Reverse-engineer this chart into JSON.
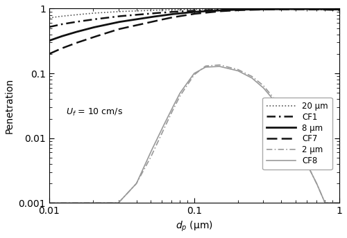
{
  "xlabel": "$d_p$ (μm)",
  "ylabel": "Penetration",
  "annotation_text": "$U_f$",
  "annotation_rest": " = 10 cm/s",
  "xlim": [
    0.01,
    1.0
  ],
  "ylim": [
    0.001,
    1.0
  ],
  "background_color": "#ffffff",
  "legend_entries": [
    "20 μm",
    "CF1",
    "8 μm",
    "CF7",
    "2 μm",
    "CF8"
  ],
  "curves": {
    "P20_x": [
      0.01,
      0.012,
      0.015,
      0.02,
      0.03,
      0.05,
      0.07,
      0.1,
      0.15,
      0.2,
      0.3,
      0.5,
      0.7,
      1.0
    ],
    "P20_y": [
      0.72,
      0.76,
      0.8,
      0.85,
      0.9,
      0.94,
      0.96,
      0.975,
      0.985,
      0.99,
      0.995,
      0.998,
      0.999,
      1.0
    ],
    "CF1_x": [
      0.01,
      0.012,
      0.015,
      0.02,
      0.03,
      0.05,
      0.07,
      0.1,
      0.15,
      0.2,
      0.3,
      0.5,
      0.7,
      1.0
    ],
    "CF1_y": [
      0.52,
      0.57,
      0.62,
      0.68,
      0.76,
      0.84,
      0.89,
      0.93,
      0.96,
      0.975,
      0.985,
      0.99,
      0.985,
      0.97
    ],
    "P8_x": [
      0.01,
      0.012,
      0.015,
      0.02,
      0.03,
      0.05,
      0.07,
      0.1,
      0.15,
      0.2,
      0.3,
      0.5,
      0.7,
      1.0
    ],
    "P8_y": [
      0.32,
      0.37,
      0.43,
      0.51,
      0.62,
      0.74,
      0.82,
      0.89,
      0.94,
      0.965,
      0.98,
      0.987,
      0.985,
      0.97
    ],
    "CF7_x": [
      0.01,
      0.012,
      0.015,
      0.02,
      0.03,
      0.05,
      0.07,
      0.1,
      0.15,
      0.2,
      0.3,
      0.5,
      0.7,
      1.0
    ],
    "CF7_y": [
      0.2,
      0.24,
      0.29,
      0.36,
      0.48,
      0.62,
      0.73,
      0.83,
      0.91,
      0.945,
      0.97,
      0.978,
      0.972,
      0.95
    ],
    "P2_x": [
      0.01,
      0.015,
      0.02,
      0.03,
      0.04,
      0.05,
      0.06,
      0.07,
      0.08,
      0.1,
      0.12,
      0.15,
      0.2,
      0.25,
      0.3,
      0.4,
      0.5,
      0.6,
      0.7,
      0.8,
      0.9,
      1.0
    ],
    "P2_y": [
      0.001,
      0.001,
      0.001,
      0.001,
      0.002,
      0.005,
      0.012,
      0.025,
      0.045,
      0.095,
      0.13,
      0.135,
      0.115,
      0.09,
      0.065,
      0.03,
      0.012,
      0.004,
      0.002,
      0.001,
      0.001,
      0.001
    ],
    "CF8_x": [
      0.01,
      0.015,
      0.02,
      0.03,
      0.04,
      0.05,
      0.06,
      0.07,
      0.08,
      0.1,
      0.12,
      0.15,
      0.2,
      0.25,
      0.3,
      0.4,
      0.5,
      0.6,
      0.7,
      0.8,
      0.9,
      1.0
    ],
    "CF8_y": [
      0.001,
      0.001,
      0.001,
      0.001,
      0.002,
      0.006,
      0.014,
      0.028,
      0.05,
      0.1,
      0.125,
      0.128,
      0.11,
      0.085,
      0.06,
      0.028,
      0.01,
      0.004,
      0.002,
      0.001,
      0.001,
      0.001
    ]
  }
}
